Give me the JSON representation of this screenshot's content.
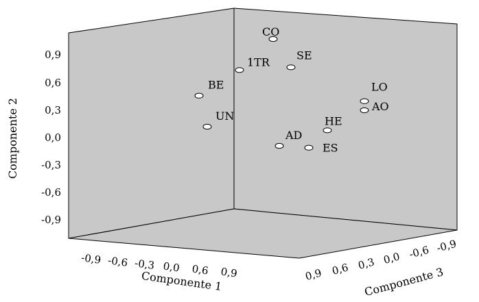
{
  "chart_data": {
    "type": "scatter",
    "style": "3d",
    "grid": false,
    "legend": "none",
    "title": "",
    "axes": {
      "x": {
        "label": "Componente 1",
        "ticks": [
          "-0,9",
          "-0,6",
          "-0,3",
          "0,0",
          "0,6",
          "0,9"
        ]
      },
      "y": {
        "label": "Componente 2",
        "ticks": [
          "0,9",
          "0,6",
          "0,3",
          "0,0",
          "-0,3",
          "-0,6",
          "-0,9"
        ],
        "range": [
          -0.9,
          0.9
        ]
      },
      "z": {
        "label": "Componente 3",
        "ticks": [
          "0,9",
          "0,6",
          "0,3",
          "0,0",
          "-0,6",
          "-0,9"
        ]
      }
    },
    "points": [
      {
        "label": "CO",
        "apparent_y": 1.08
      },
      {
        "label": "SE",
        "apparent_y": 0.77
      },
      {
        "label": "1TR",
        "apparent_y": 0.74
      },
      {
        "label": "BE",
        "apparent_y": 0.46
      },
      {
        "label": "UN",
        "apparent_y": 0.12
      },
      {
        "label": "LO",
        "apparent_y": 0.4
      },
      {
        "label": "AO",
        "apparent_y": 0.3
      },
      {
        "label": "HE",
        "apparent_y": 0.08
      },
      {
        "label": "AD",
        "apparent_y": -0.09
      },
      {
        "label": "ES",
        "apparent_y": -0.11
      }
    ],
    "colors": {
      "panel": "#c8c8c8",
      "frame": "#000000",
      "marker_fill": "#ffffff"
    }
  }
}
